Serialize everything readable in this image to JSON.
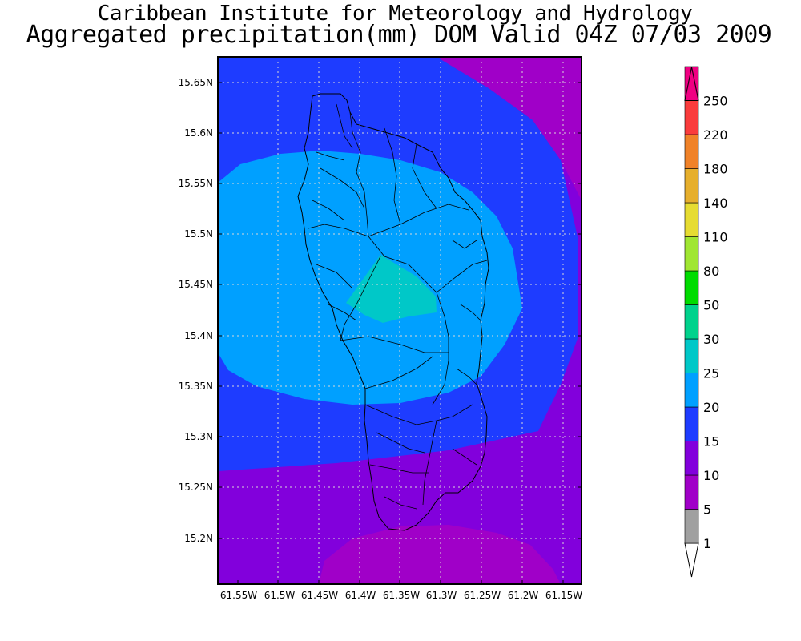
{
  "title_line1": "Caribbean Institute for Meteorology and Hydrology",
  "title_line2": "Aggregated precipitation(mm) DOM Valid 04Z 07/03 2009",
  "map": {
    "y_ticks": [
      "15.65N",
      "15.6N",
      "15.55N",
      "15.5N",
      "15.45N",
      "15.4N",
      "15.35N",
      "15.3N",
      "15.25N",
      "15.2N"
    ],
    "x_ticks": [
      "61.55W",
      "61.5W",
      "61.45W",
      "61.4W",
      "61.35W",
      "61.3W",
      "61.25W",
      "61.2W",
      "61.15W"
    ],
    "grid": true,
    "fill_colors": {
      "5_10": "#a000c8",
      "10_15": "#8200dc",
      "15_20": "#1e3cff",
      "20_25": "#00a0ff",
      "25_30": "#00c8c8"
    }
  },
  "colorbar": {
    "levels": [
      "1",
      "5",
      "10",
      "15",
      "20",
      "25",
      "30",
      "50",
      "80",
      "110",
      "140",
      "180",
      "220",
      "250"
    ],
    "colors": [
      "#a0a0a0",
      "#a000c8",
      "#8200dc",
      "#1e3cff",
      "#00a0ff",
      "#00c8c8",
      "#00d28c",
      "#00dc00",
      "#a0e632",
      "#e6dc32",
      "#e6af2d",
      "#f08228",
      "#fa3c3c",
      "#f00082"
    ],
    "top_arrow_color": "#f00082",
    "bottom_arrow_color": "#ffffff"
  }
}
